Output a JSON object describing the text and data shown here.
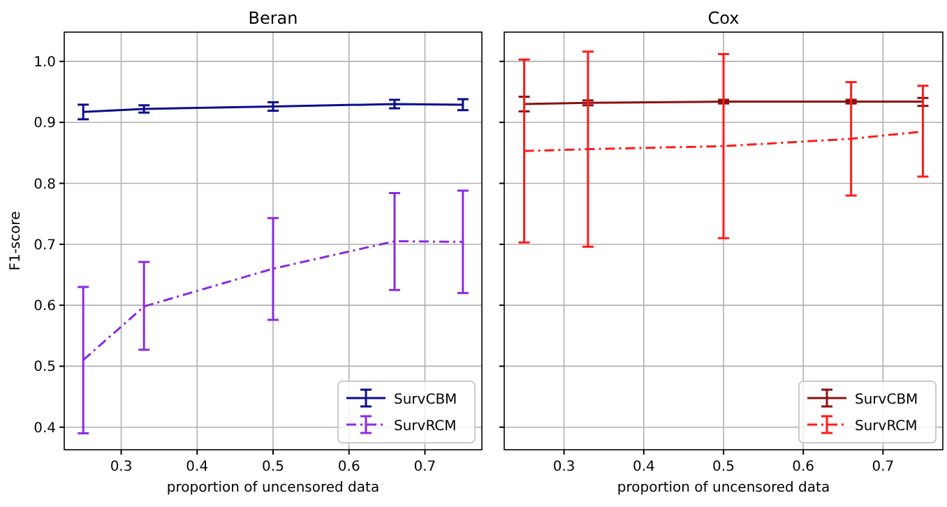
{
  "chart_data": [
    {
      "type": "line",
      "title": "Beran",
      "xlabel": "proportion of uncensored data",
      "ylabel": "F1-score",
      "x": [
        0.25,
        0.33,
        0.5,
        0.66,
        0.75
      ],
      "xlim": [
        0.225,
        0.775
      ],
      "xticks": [
        0.3,
        0.4,
        0.5,
        0.6,
        0.7
      ],
      "ylim": [
        0.363,
        1.048
      ],
      "yticks": [
        0.4,
        0.5,
        0.6,
        0.7,
        0.8,
        0.9,
        {
          "value": 1.0,
          "label": "1.0"
        }
      ],
      "grid": true,
      "legend": "bottom right",
      "series": [
        {
          "name": "SurvCBM",
          "color": "#0d0d8a",
          "line_style": "solid",
          "values": [
            0.917,
            0.922,
            0.926,
            0.93,
            0.929
          ],
          "errors": [
            [
              0.905,
              0.929
            ],
            [
              0.916,
              0.928
            ],
            [
              0.919,
              0.933
            ],
            [
              0.923,
              0.937
            ],
            [
              0.92,
              0.938
            ]
          ]
        },
        {
          "name": "SurvRCM",
          "color": "#8a2be2",
          "line_style": "dashdot",
          "values": [
            0.51,
            0.598,
            0.66,
            0.705,
            0.704
          ],
          "errors": [
            [
              0.39,
              0.63
            ],
            [
              0.527,
              0.671
            ],
            [
              0.576,
              0.743
            ],
            [
              0.625,
              0.784
            ],
            [
              0.62,
              0.788
            ]
          ]
        }
      ]
    },
    {
      "type": "line",
      "title": "Cox",
      "xlabel": "proportion of uncensored data",
      "x": [
        0.25,
        0.33,
        0.5,
        0.66,
        0.75
      ],
      "xlim": [
        0.225,
        0.775
      ],
      "xticks": [
        0.3,
        0.4,
        0.5,
        0.6,
        0.7
      ],
      "ylim": [
        0.363,
        1.048
      ],
      "yticks": [
        0.4,
        0.5,
        0.6,
        0.7,
        0.8,
        0.9,
        1
      ],
      "tick_labels": "x",
      "grid": true,
      "legend": "bottom right",
      "series": [
        {
          "name": "SurvCBM",
          "color": "#8b1010",
          "line_style": "solid",
          "values": [
            0.93,
            0.932,
            0.934,
            0.934,
            0.934
          ],
          "errors": [
            [
              0.918,
              0.942
            ],
            [
              0.928,
              0.936
            ],
            [
              0.931,
              0.937
            ],
            [
              0.931,
              0.937
            ],
            [
              0.927,
              0.94
            ]
          ]
        },
        {
          "name": "SurvRCM",
          "color": "#ff1a1a",
          "line_style": "dashdot",
          "values": [
            0.853,
            0.856,
            0.861,
            0.873,
            0.885
          ],
          "errors": [
            [
              0.703,
              1.003
            ],
            [
              0.696,
              1.016
            ],
            [
              0.71,
              1.012
            ],
            [
              0.78,
              0.966
            ],
            [
              0.811,
              0.96
            ]
          ]
        }
      ]
    }
  ]
}
